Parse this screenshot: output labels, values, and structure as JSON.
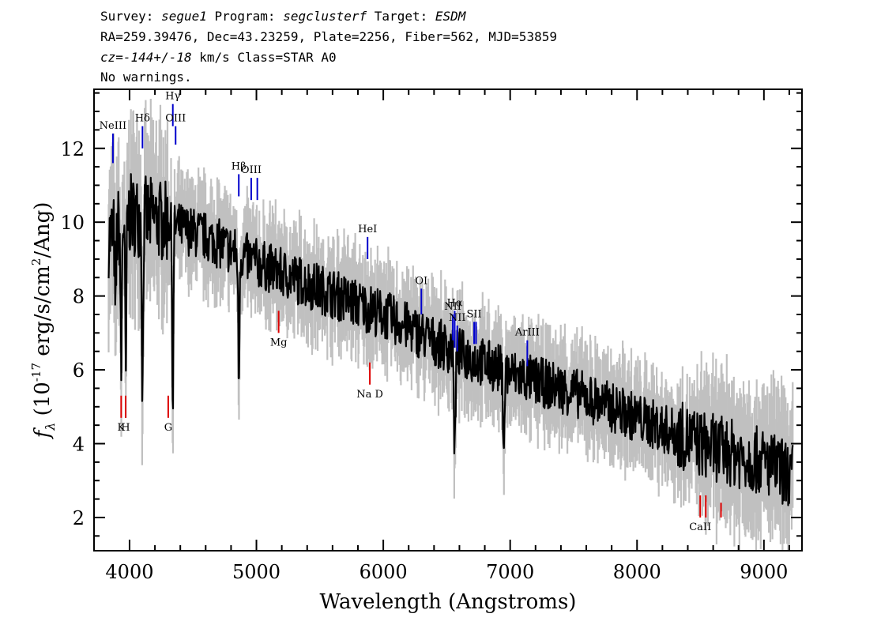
{
  "header": {
    "line1": {
      "survey_label": "Survey: ",
      "survey": "segue1",
      "program_label": " Program: ",
      "program": "segclusterf",
      "target_label": " Target: ",
      "target": "ESDM"
    },
    "line2": "RA=259.39476, Dec=43.23259, Plate=2256, Fiber=562, MJD=53859",
    "line3": {
      "cz": "cz=-144+/-18",
      "rest": " km/s Class=STAR A0"
    },
    "line4": "No warnings."
  },
  "chart_data": {
    "type": "line",
    "xlabel": "Wavelength (Angstroms)",
    "ylabel_parts": {
      "f": "f",
      "lambda": "λ",
      "pre": " (10",
      "exp1": "-17",
      "mid": " erg/s/cm",
      "exp2": "2",
      "post": "/Ang)"
    },
    "xlim": [
      3720,
      9300
    ],
    "ylim": [
      1.1,
      13.6
    ],
    "xticks": [
      4000,
      5000,
      6000,
      7000,
      8000,
      9000
    ],
    "yticks": [
      2,
      4,
      6,
      8,
      10,
      12
    ],
    "colors": {
      "flux": "#000000",
      "error_band": "#c0c0c0",
      "emission": "#0000cc",
      "absorption": "#dd0000"
    },
    "continuum_anchors": [
      {
        "x": 3850,
        "y": 9.6
      },
      {
        "x": 4000,
        "y": 10.2
      },
      {
        "x": 4200,
        "y": 10.1
      },
      {
        "x": 4600,
        "y": 9.6
      },
      {
        "x": 5000,
        "y": 8.9
      },
      {
        "x": 5500,
        "y": 8.2
      },
      {
        "x": 6000,
        "y": 7.5
      },
      {
        "x": 6500,
        "y": 6.6
      },
      {
        "x": 7000,
        "y": 5.9
      },
      {
        "x": 7500,
        "y": 5.4
      },
      {
        "x": 8000,
        "y": 4.7
      },
      {
        "x": 8500,
        "y": 4.0
      },
      {
        "x": 9000,
        "y": 3.5
      },
      {
        "x": 9230,
        "y": 3.1
      }
    ],
    "absorption_features": [
      {
        "x": 3889,
        "depth": 2.5
      },
      {
        "x": 3934,
        "depth": 4.0
      },
      {
        "x": 3970,
        "depth": 4.5
      },
      {
        "x": 4102,
        "depth": 4.8
      },
      {
        "x": 4341,
        "depth": 5.0
      },
      {
        "x": 4861,
        "depth": 3.5
      },
      {
        "x": 6563,
        "depth": 2.7
      },
      {
        "x": 6950,
        "depth": 1.8
      }
    ],
    "spectral_lines": [
      {
        "label": "NeIII",
        "x": 3869,
        "kind": "emission",
        "y_top": 12.4,
        "y_bottom": 11.6
      },
      {
        "label": "Hδ",
        "x": 4102,
        "kind": "emission",
        "y_top": 12.6,
        "y_bottom": 12.0
      },
      {
        "label": "Hγ",
        "x": 4341,
        "kind": "emission",
        "y_top": 13.2,
        "y_bottom": 12.6
      },
      {
        "label": "OIII",
        "x": 4363,
        "kind": "emission",
        "y_top": 12.6,
        "y_bottom": 12.1
      },
      {
        "label": "Hβ",
        "x": 4861,
        "kind": "emission",
        "y_top": 11.3,
        "y_bottom": 10.7
      },
      {
        "label": "OIII",
        "x": 4959,
        "kind": "emission",
        "y_top": 11.2,
        "y_bottom": 10.6
      },
      {
        "label": "",
        "x": 5007,
        "kind": "emission",
        "y_top": 11.2,
        "y_bottom": 10.6
      },
      {
        "label": "HeI",
        "x": 5876,
        "kind": "emission",
        "y_top": 9.6,
        "y_bottom": 9.0
      },
      {
        "label": "OI",
        "x": 6300,
        "kind": "emission",
        "y_top": 8.2,
        "y_bottom": 7.5
      },
      {
        "label": "NII",
        "x": 6548,
        "kind": "emission",
        "y_top": 7.5,
        "y_bottom": 6.8
      },
      {
        "label": "Hα",
        "x": 6563,
        "kind": "emission",
        "y_top": 7.6,
        "y_bottom": 6.6
      },
      {
        "label": "NII",
        "x": 6583,
        "kind": "emission",
        "y_top": 7.2,
        "y_bottom": 6.5
      },
      {
        "label": "SII",
        "x": 6716,
        "kind": "emission",
        "y_top": 7.3,
        "y_bottom": 6.7
      },
      {
        "label": "",
        "x": 6731,
        "kind": "emission",
        "y_top": 7.3,
        "y_bottom": 6.7
      },
      {
        "label": "ArIII",
        "x": 7135,
        "kind": "emission",
        "y_top": 6.8,
        "y_bottom": 6.1
      },
      {
        "label": "K",
        "x": 3934,
        "kind": "absorption",
        "y_top": 5.3,
        "y_bottom": 4.7
      },
      {
        "label": "H",
        "x": 3969,
        "kind": "absorption",
        "y_top": 5.3,
        "y_bottom": 4.7
      },
      {
        "label": "G",
        "x": 4305,
        "kind": "absorption",
        "y_top": 5.3,
        "y_bottom": 4.7
      },
      {
        "label": "Mg",
        "x": 5175,
        "kind": "absorption",
        "y_top": 7.6,
        "y_bottom": 7.0
      },
      {
        "label": "Na D",
        "x": 5894,
        "kind": "absorption",
        "y_top": 6.2,
        "y_bottom": 5.6
      },
      {
        "label": "CaII",
        "x": 8498,
        "kind": "absorption",
        "y_top": 2.6,
        "y_bottom": 2.0
      },
      {
        "label": "",
        "x": 8542,
        "kind": "absorption",
        "y_top": 2.6,
        "y_bottom": 2.0
      },
      {
        "label": "",
        "x": 8662,
        "kind": "absorption",
        "y_top": 2.4,
        "y_bottom": 2.0
      }
    ]
  }
}
